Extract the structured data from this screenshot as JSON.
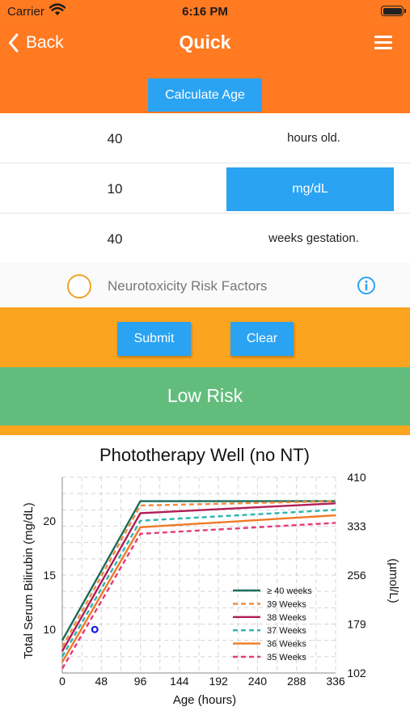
{
  "status_bar": {
    "carrier": "Carrier",
    "time": "6:16 PM"
  },
  "nav": {
    "back_label": "Back",
    "title": "Quick"
  },
  "calculate_age_label": "Calculate Age",
  "inputs": {
    "age_value": "40",
    "age_unit": "hours old.",
    "bilirubin_value": "10",
    "bilirubin_unit": "mg/dL",
    "gestation_value": "40",
    "gestation_unit": "weeks gestation."
  },
  "risk_factors_label": "Neurotoxicity Risk Factors",
  "buttons": {
    "submit": "Submit",
    "clear": "Clear"
  },
  "result": "Low Risk",
  "colors": {
    "header": "#ff7a21",
    "accent_blue": "#2aa3f2",
    "band": "#fba420",
    "result_green": "#62bd7c"
  },
  "chart_data": {
    "type": "line",
    "title": "Phototherapy Well (no NT)",
    "xlabel": "Age (hours)",
    "ylabel": "Total Serum Bilirubin (mg/dL)",
    "y2label": "(µmol/L)",
    "xlim": [
      0,
      336
    ],
    "ylim": [
      6,
      24
    ],
    "xticks": [
      0,
      48,
      96,
      144,
      192,
      240,
      288,
      336
    ],
    "yticks": [
      10,
      15,
      20
    ],
    "y2ticks": [
      {
        "label": "410",
        "at": 24
      },
      {
        "label": "333",
        "at": 19.5
      },
      {
        "label": "256",
        "at": 15
      },
      {
        "label": "179",
        "at": 10.5
      },
      {
        "label": "102",
        "at": 6
      }
    ],
    "grid": true,
    "legend_position": "bottom-right",
    "series": [
      {
        "name": "≥ 40 weeks",
        "color": "#1a6b5e",
        "dash": "solid",
        "x": [
          0,
          96,
          336
        ],
        "y": [
          9.0,
          21.8,
          21.8
        ]
      },
      {
        "name": "39 Weeks",
        "color": "#ef8a3a",
        "dash": "dashed",
        "x": [
          0,
          96,
          336
        ],
        "y": [
          8.4,
          21.4,
          21.8
        ]
      },
      {
        "name": "38 Weeks",
        "color": "#b01d56",
        "dash": "solid",
        "x": [
          0,
          96,
          336
        ],
        "y": [
          8.0,
          20.7,
          21.6
        ]
      },
      {
        "name": "37 Weeks",
        "color": "#2bb5ad",
        "dash": "dashed",
        "x": [
          0,
          96,
          336
        ],
        "y": [
          7.5,
          20.0,
          21.0
        ]
      },
      {
        "name": "36 Weeks",
        "color": "#ef7a25",
        "dash": "solid",
        "x": [
          0,
          96,
          336
        ],
        "y": [
          7.0,
          19.4,
          20.5
        ]
      },
      {
        "name": "35 Weeks",
        "color": "#e63b7c",
        "dash": "dashed",
        "x": [
          0,
          96,
          336
        ],
        "y": [
          6.4,
          18.8,
          19.8
        ]
      }
    ],
    "patient_point": {
      "x": 40,
      "y": 10,
      "color": "#1a1ae0"
    }
  }
}
